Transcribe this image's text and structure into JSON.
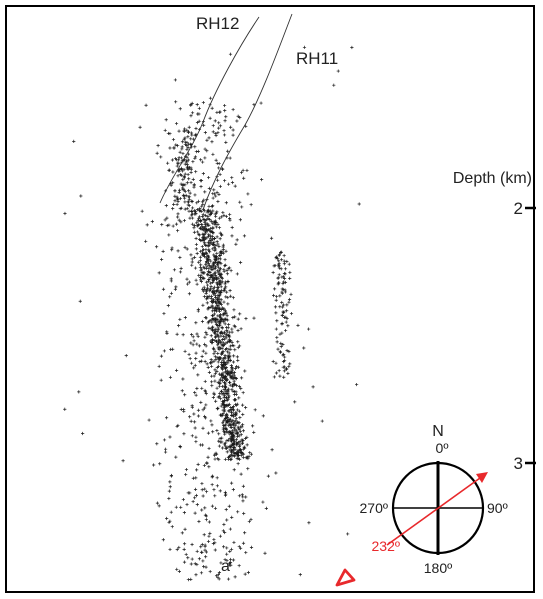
{
  "wells": [
    {
      "name": "RH12"
    },
    {
      "name": "RH11"
    }
  ],
  "depth_axis": {
    "title": "Depth (km)",
    "ticks": [
      {
        "label": "2"
      },
      {
        "label": "3"
      }
    ]
  },
  "compass": {
    "north_label": "N",
    "labels": {
      "top": "0º",
      "right": "90º",
      "bottom": "180º",
      "left": "270º",
      "azimuth": "232º"
    },
    "azimuth_color": "#e8292c"
  },
  "panel_label": "a",
  "marker_color": "#e8292c"
}
